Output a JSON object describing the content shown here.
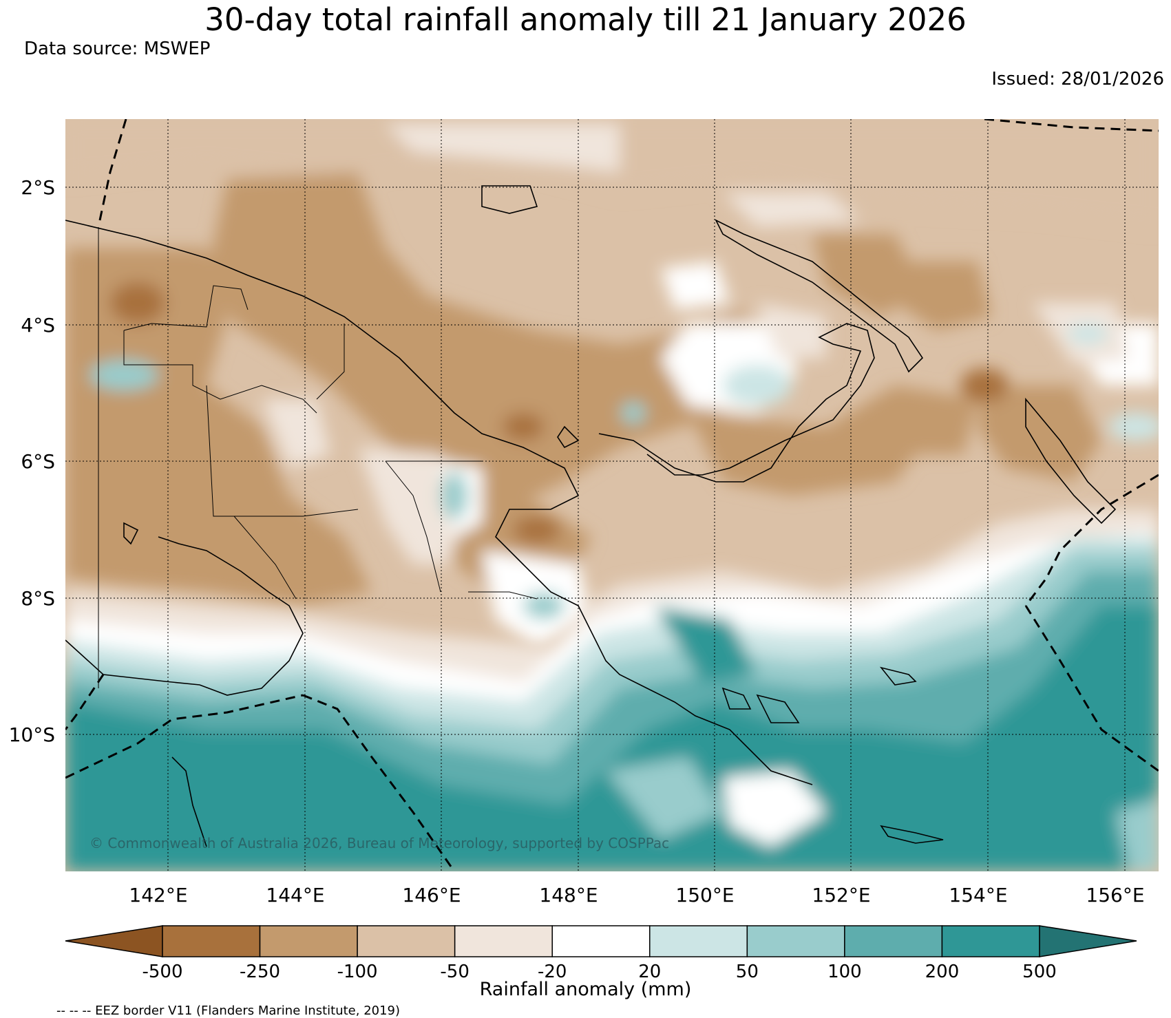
{
  "title": "30-day total rainfall anomaly till 21 January 2026",
  "data_source": "Data source: MSWEP",
  "issued": "Issued: 28/01/2026",
  "copyright": "© Commonwealth of Australia 2026, Bureau of Meteorology, supported by COSPPac",
  "lat_labels": [
    "2°S",
    "4°S",
    "6°S",
    "8°S",
    "10°S"
  ],
  "lon_labels": [
    "142°E",
    "144°E",
    "146°E",
    "148°E",
    "150°E",
    "152°E",
    "154°E",
    "156°E"
  ],
  "colorbar": {
    "title": "Rainfall anomaly (mm)",
    "ticks": [
      "-500",
      "-250",
      "-100",
      "-50",
      "-20",
      "20",
      "50",
      "100",
      "200",
      "500"
    ],
    "colors": {
      "under": "#8c5422",
      "bins": [
        "#a8713c",
        "#c39a6d",
        "#dbc1a7",
        "#f0e5dc",
        "#ffffff",
        "#cce5e5",
        "#99cccc",
        "#5eadad",
        "#2f9796"
      ],
      "over": "#237373"
    }
  },
  "legend_note": "-- -- -- EEZ border V11 (Flanders Marine Institute, 2019)"
}
